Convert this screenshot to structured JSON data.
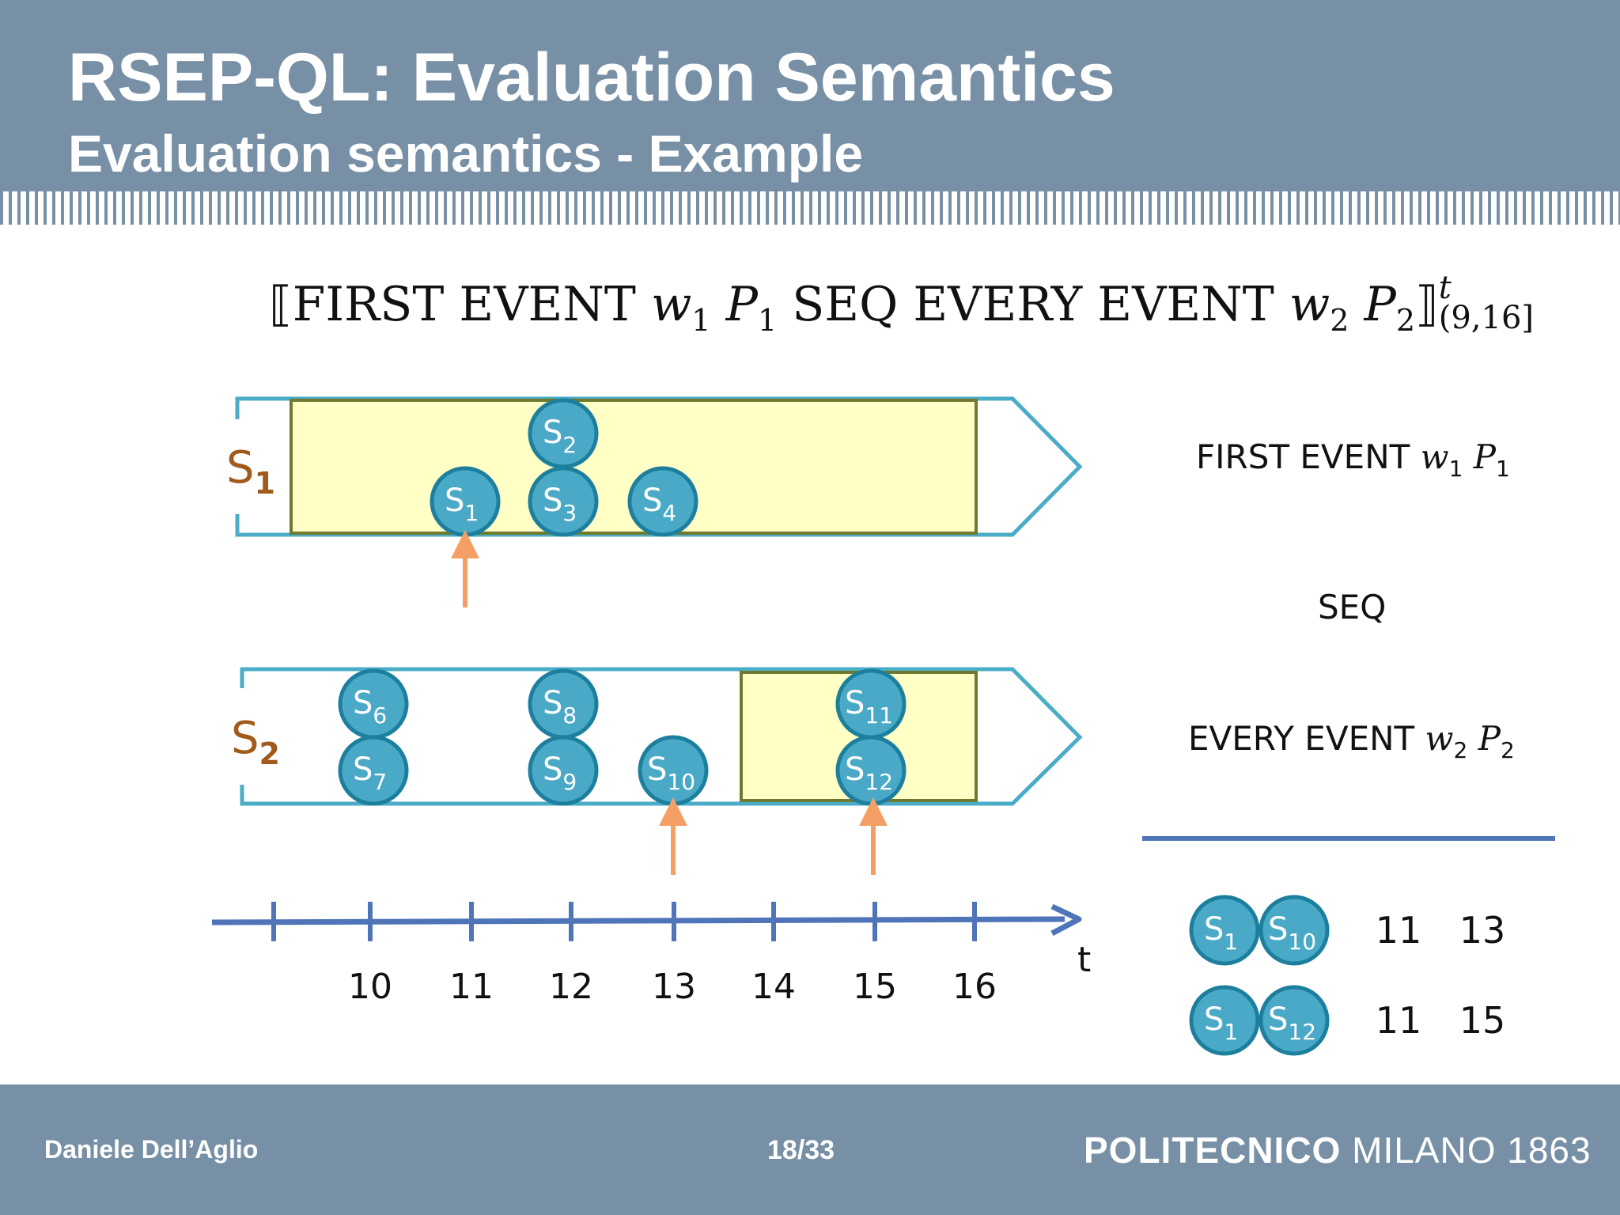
{
  "header": {
    "title": "RSEP-QL: Evaluation Semantics",
    "subtitle": "Evaluation semantics - Example"
  },
  "formula": {
    "open": "⟦FIRST EVENT ",
    "w1": "w",
    "w1_sub": "1",
    "p1": "P",
    "p1_sub": "1",
    "mid": " SEQ EVERY EVENT ",
    "w2": "w",
    "w2_sub": "2",
    "p2": "P",
    "p2_sub": "2",
    "close": "⟧",
    "sup": "t",
    "interval": "(9,16]"
  },
  "streams": {
    "s1": {
      "label": "S",
      "sub": "1"
    },
    "s2": {
      "label": "S",
      "sub": "2"
    }
  },
  "events": [
    {
      "id": "s1",
      "label": "S",
      "sub": "1"
    },
    {
      "id": "s2",
      "label": "S",
      "sub": "2"
    },
    {
      "id": "s3",
      "label": "S",
      "sub": "3"
    },
    {
      "id": "s4",
      "label": "S",
      "sub": "4"
    },
    {
      "id": "s6",
      "label": "S",
      "sub": "6"
    },
    {
      "id": "s7",
      "label": "S",
      "sub": "7"
    },
    {
      "id": "s8",
      "label": "S",
      "sub": "8"
    },
    {
      "id": "s9",
      "label": "S",
      "sub": "9"
    },
    {
      "id": "s10",
      "label": "S",
      "sub": "10"
    },
    {
      "id": "s11",
      "label": "S",
      "sub": "11"
    },
    {
      "id": "s12",
      "label": "S",
      "sub": "12"
    }
  ],
  "timeline": {
    "ticks": [
      "10",
      "11",
      "12",
      "13",
      "14",
      "15",
      "16"
    ],
    "axis_label": "t"
  },
  "operators": {
    "first": {
      "text": "FIRST EVENT ",
      "w": "w",
      "w_sub": "1",
      "p": "P",
      "p_sub": "1"
    },
    "seq": "SEQ",
    "every": {
      "text": "EVERY EVENT ",
      "w": "w",
      "w_sub": "2",
      "p": "P",
      "p_sub": "2"
    }
  },
  "results": [
    {
      "a_label": "S",
      "a_sub": "1",
      "b_label": "S",
      "b_sub": "10",
      "t1": "11",
      "t2": "13"
    },
    {
      "a_label": "S",
      "a_sub": "1",
      "b_label": "S",
      "b_sub": "12",
      "t1": "11",
      "t2": "15"
    }
  ],
  "footer": {
    "author": "Daniele Dell’Aglio",
    "page": "18/33",
    "logo_bold": "POLITECNICO",
    "logo_rest": " MILANO 1863"
  },
  "colors": {
    "header_bg": "#7890a6",
    "event_fill": "#4aa9c6",
    "event_stroke": "#1d7f9e",
    "window_fill": "#ffffc6",
    "window_stroke": "#6f7a30",
    "stream_outline": "#4aacc6",
    "arrow_orange": "#f4a064",
    "axis_blue": "#4f75b8",
    "stream_label": "#a05a1a"
  }
}
